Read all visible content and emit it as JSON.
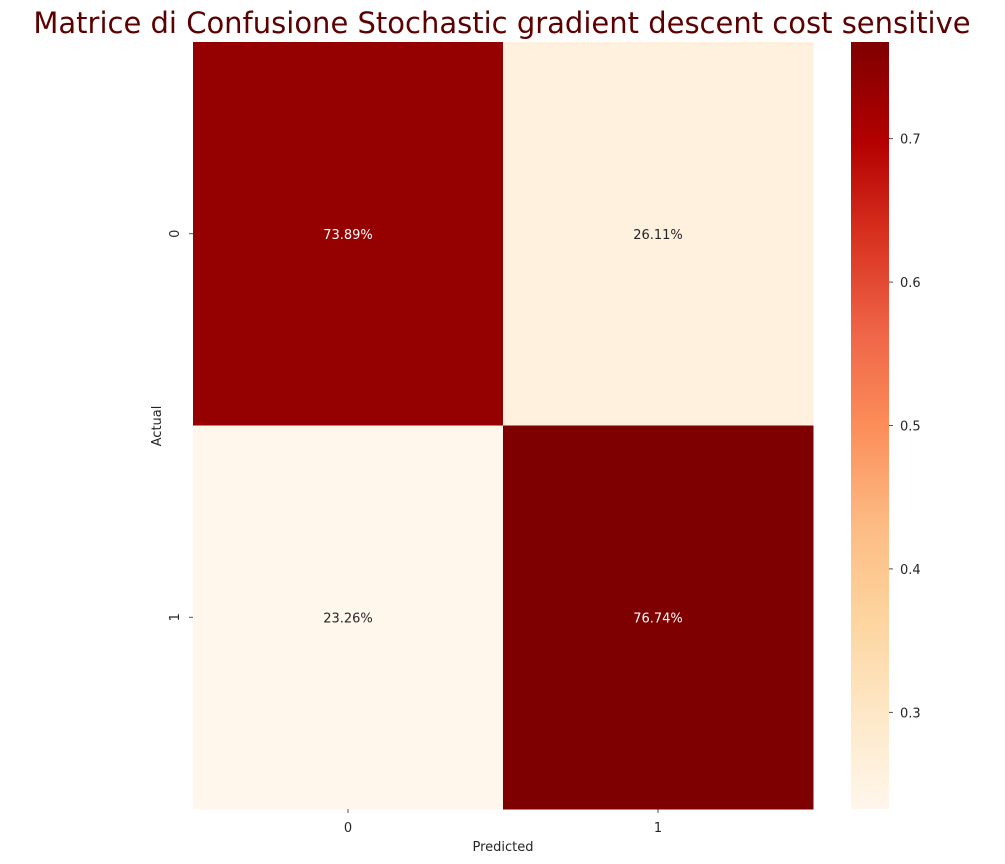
{
  "chart_data": {
    "type": "heatmap",
    "title": "Matrice di Confusione Stochastic gradient descent cost sensitive",
    "xlabel": "Predicted",
    "ylabel": "Actual",
    "x_categories": [
      "0",
      "1"
    ],
    "y_categories": [
      "0",
      "1"
    ],
    "values": [
      [
        0.7389,
        0.2611
      ],
      [
        0.2326,
        0.7674
      ]
    ],
    "labels": [
      [
        "73.89%",
        "26.11%"
      ],
      [
        "23.26%",
        "76.74%"
      ]
    ],
    "colormap": "OrRd",
    "color_range": [
      0.2326,
      0.7674
    ],
    "colorbar_ticks": [
      "0.3",
      "0.4",
      "0.5",
      "0.6",
      "0.7"
    ],
    "colorbar_tick_values": [
      0.3,
      0.4,
      0.5,
      0.6,
      0.7
    ]
  }
}
